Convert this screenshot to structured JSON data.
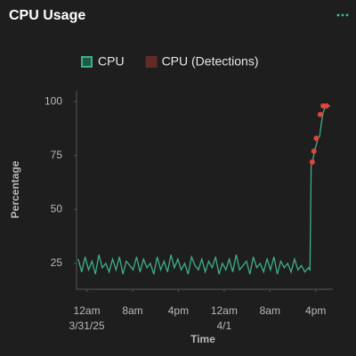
{
  "chart_data": {
    "type": "line",
    "title": "CPU Usage",
    "xlabel": "Time",
    "ylabel": "Percentage",
    "xlim": [
      -1.8,
      43
    ],
    "ylim": [
      13,
      105
    ],
    "xticks": [
      {
        "value": 0,
        "label": "12am\n3/31/25"
      },
      {
        "value": 8,
        "label": "8am"
      },
      {
        "value": 16,
        "label": "4pm"
      },
      {
        "value": 24,
        "label": "12am\n4/1"
      },
      {
        "value": 32,
        "label": "8am"
      },
      {
        "value": 40,
        "label": "4pm"
      }
    ],
    "yticks": [
      25,
      50,
      75,
      100
    ],
    "grid": false,
    "legend": "top",
    "series": [
      {
        "name": "CPU",
        "style": "line",
        "color": "#3fae86",
        "x": [
          -1.5,
          -0.9,
          -0.3,
          0.3,
          0.9,
          1.5,
          2.1,
          2.7,
          3.3,
          3.9,
          4.5,
          5.1,
          5.7,
          6.3,
          6.9,
          7.5,
          8.1,
          8.7,
          9.3,
          9.9,
          10.5,
          11.1,
          11.7,
          12.3,
          12.9,
          13.5,
          14.1,
          14.7,
          15.3,
          15.9,
          16.5,
          17.1,
          17.7,
          18.3,
          18.9,
          19.5,
          20.1,
          20.7,
          21.3,
          21.9,
          22.5,
          23.1,
          23.7,
          24.3,
          24.9,
          25.5,
          26.1,
          26.7,
          27.3,
          27.9,
          28.5,
          29.1,
          29.7,
          30.3,
          30.9,
          31.5,
          32.1,
          32.7,
          33.3,
          33.9,
          34.5,
          35.1,
          35.7,
          36.3,
          36.9,
          37.5,
          38.1,
          38.7,
          39.0,
          39.2,
          39.5,
          39.8,
          40.1,
          40.4,
          40.7,
          41.0,
          41.3,
          41.6,
          42.0,
          42.5
        ],
        "values": [
          27,
          21,
          28,
          22,
          26,
          20,
          29,
          23,
          25,
          21,
          27,
          22,
          28,
          20,
          26,
          24,
          22,
          28,
          21,
          27,
          23,
          25,
          20,
          28,
          22,
          26,
          21,
          29,
          23,
          27,
          22,
          25,
          20,
          28,
          24,
          22,
          27,
          21,
          26,
          23,
          28,
          20,
          25,
          22,
          27,
          21,
          29,
          22,
          24,
          26,
          20,
          28,
          23,
          25,
          21,
          27,
          22,
          28,
          20,
          26,
          23,
          25,
          21,
          27,
          22,
          24,
          21,
          23,
          22,
          70,
          73,
          77,
          80,
          83,
          84,
          90,
          95,
          97,
          98,
          98
        ]
      },
      {
        "name": "CPU (Detections)",
        "style": "points",
        "color": "#e0443c",
        "x": [
          39.4,
          39.7,
          40.1,
          40.8,
          41.3,
          41.9
        ],
        "values": [
          72,
          77,
          83,
          94,
          98,
          98
        ]
      }
    ]
  }
}
